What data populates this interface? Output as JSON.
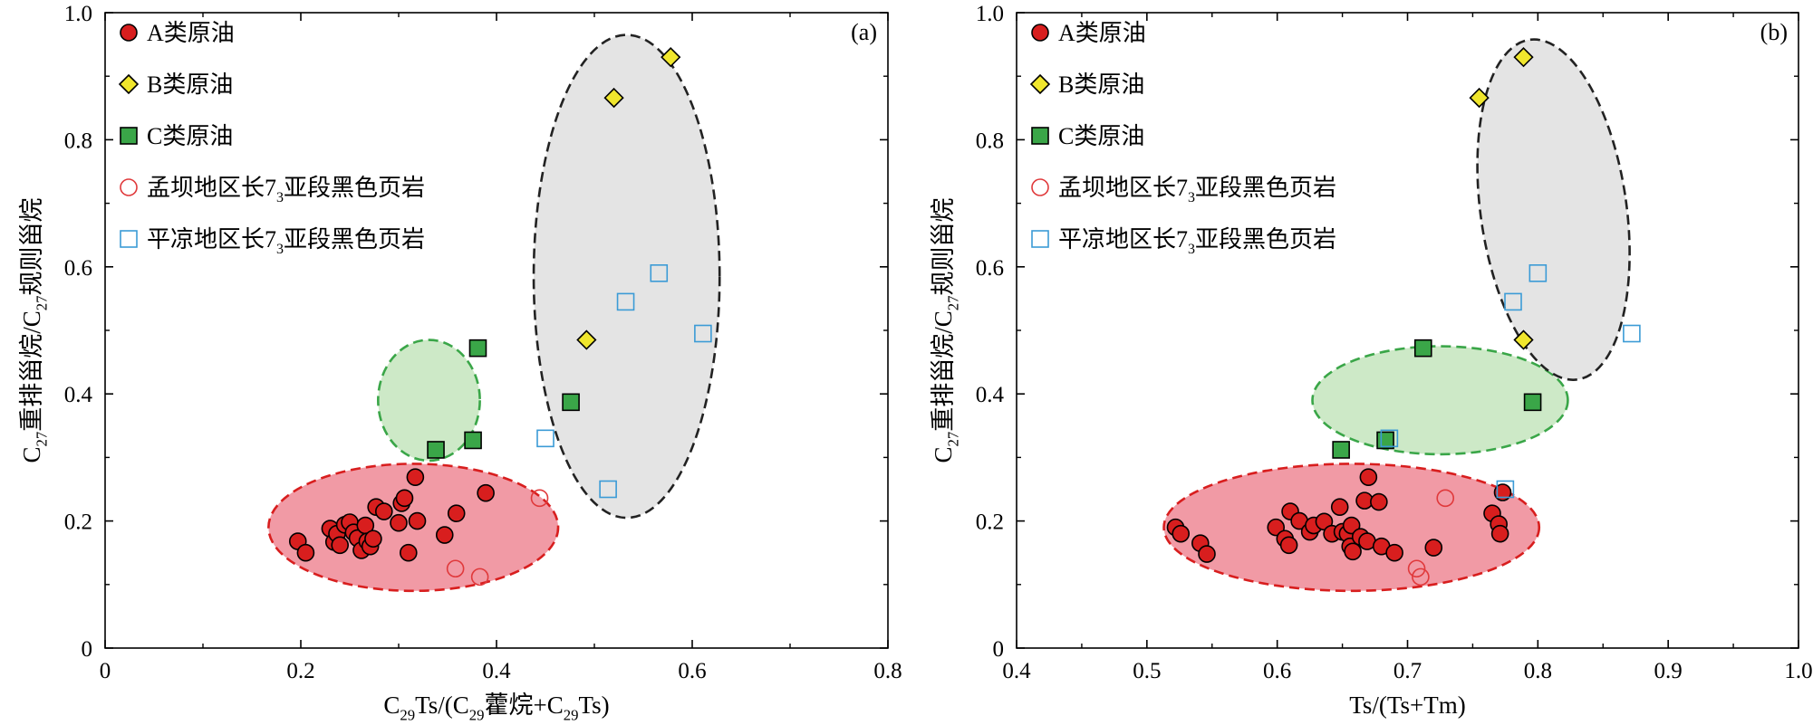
{
  "legend": [
    {
      "key": "A",
      "label": "A类原油",
      "marker": "circle-filled",
      "fill": "#d81e1e",
      "stroke": "#000000"
    },
    {
      "key": "B",
      "label": "B类原油",
      "marker": "diamond",
      "fill": "#f0e62d",
      "stroke": "#000000"
    },
    {
      "key": "C",
      "label": "C类原油",
      "marker": "square-filled",
      "fill": "#3aa648",
      "stroke": "#000000"
    },
    {
      "key": "MB",
      "label_pre": "孟坝地区长7",
      "label_sub": "3",
      "label_post": "亚段黑色页岩",
      "marker": "circle-open",
      "fill": "none",
      "stroke": "#e0393b"
    },
    {
      "key": "PL",
      "label_pre": "平凉地区长7",
      "label_sub": "3",
      "label_post": "亚段黑色页岩",
      "marker": "square-open",
      "fill": "none",
      "stroke": "#3b9bd6"
    }
  ],
  "ylabel": {
    "c1": "C",
    "s1": "27",
    "m1": "重排甾烷/C",
    "s2": "27",
    "m2": "规则甾烷"
  },
  "chart_data": [
    {
      "type": "scatter",
      "panel_label": "(a)",
      "xlabel": {
        "c1": "C",
        "s1": "29",
        "m1": "Ts/(C",
        "s2": "29",
        "m2": "藿烷+C",
        "s3": "29",
        "m3": "Ts)"
      },
      "xlim": [
        0,
        0.8
      ],
      "ylim": [
        0,
        1.0
      ],
      "xticks": [
        "0",
        "0.2",
        "0.4",
        "0.6",
        "0.8"
      ],
      "yticks": [
        "0",
        "0.2",
        "0.4",
        "0.6",
        "0.8",
        "1.0"
      ],
      "ellipses": [
        {
          "name": "A",
          "cx": 0.315,
          "cy": 0.19,
          "rx": 0.148,
          "ry": 0.1,
          "angle": 0,
          "fill": "#f19aa5",
          "stroke": "#d81e1e"
        },
        {
          "name": "C",
          "cx": 0.331,
          "cy": 0.39,
          "rx": 0.052,
          "ry": 0.095,
          "angle": 0,
          "fill": "#cde9c7",
          "stroke": "#3aa648"
        },
        {
          "name": "B",
          "cx": 0.533,
          "cy": 0.585,
          "rx": 0.095,
          "ry": 0.38,
          "angle": 0,
          "fill": "#e4e4e4",
          "stroke": "#222222"
        }
      ],
      "series": [
        {
          "name": "A类原油",
          "marker": "circle-filled",
          "points": [
            [
              0.197,
              0.168
            ],
            [
              0.205,
              0.15
            ],
            [
              0.23,
              0.188
            ],
            [
              0.234,
              0.167
            ],
            [
              0.237,
              0.18
            ],
            [
              0.24,
              0.162
            ],
            [
              0.245,
              0.194
            ],
            [
              0.25,
              0.198
            ],
            [
              0.254,
              0.182
            ],
            [
              0.258,
              0.173
            ],
            [
              0.262,
              0.154
            ],
            [
              0.266,
              0.193
            ],
            [
              0.268,
              0.168
            ],
            [
              0.271,
              0.16
            ],
            [
              0.274,
              0.172
            ],
            [
              0.277,
              0.222
            ],
            [
              0.285,
              0.215
            ],
            [
              0.3,
              0.197
            ],
            [
              0.303,
              0.228
            ],
            [
              0.306,
              0.236
            ],
            [
              0.31,
              0.15
            ],
            [
              0.317,
              0.269
            ],
            [
              0.319,
              0.2
            ],
            [
              0.347,
              0.178
            ],
            [
              0.359,
              0.212
            ],
            [
              0.389,
              0.244
            ]
          ]
        },
        {
          "name": "B类原油",
          "marker": "diamond",
          "points": [
            [
              0.52,
              0.866
            ],
            [
              0.578,
              0.93
            ],
            [
              0.492,
              0.485
            ]
          ]
        },
        {
          "name": "C类原油",
          "marker": "square-filled",
          "points": [
            [
              0.381,
              0.472
            ],
            [
              0.376,
              0.327
            ],
            [
              0.338,
              0.312
            ],
            [
              0.476,
              0.387
            ]
          ]
        },
        {
          "name": "孟坝地区长7₃亚段黑色页岩",
          "marker": "circle-open",
          "points": [
            [
              0.444,
              0.236
            ],
            [
              0.358,
              0.125
            ],
            [
              0.383,
              0.112
            ]
          ]
        },
        {
          "name": "平凉地区长7₃亚段黑色页岩",
          "marker": "square-open",
          "points": [
            [
              0.566,
              0.59
            ],
            [
              0.532,
              0.545
            ],
            [
              0.611,
              0.495
            ],
            [
              0.45,
              0.33
            ],
            [
              0.514,
              0.25
            ]
          ]
        }
      ]
    },
    {
      "type": "scatter",
      "panel_label": "(b)",
      "xlabel": {
        "c1": "Ts/(Ts+Tm)"
      },
      "xlim": [
        0.4,
        1.0
      ],
      "ylim": [
        0,
        1.0
      ],
      "xticks": [
        "0.4",
        "0.5",
        "0.6",
        "0.7",
        "0.8",
        "0.9",
        "1.0"
      ],
      "yticks": [
        "0",
        "0.2",
        "0.4",
        "0.6",
        "0.8",
        "1.0"
      ],
      "ellipses": [
        {
          "name": "A",
          "cx": 0.657,
          "cy": 0.19,
          "rx": 0.144,
          "ry": 0.1,
          "angle": 0,
          "fill": "#f19aa5",
          "stroke": "#d81e1e"
        },
        {
          "name": "C",
          "cx": 0.725,
          "cy": 0.39,
          "rx": 0.098,
          "ry": 0.085,
          "angle": 0,
          "fill": "#cde9c7",
          "stroke": "#3aa648"
        },
        {
          "name": "B",
          "cx": 0.812,
          "cy": 0.69,
          "rx": 0.056,
          "ry": 0.27,
          "angle": -8,
          "fill": "#e4e4e4",
          "stroke": "#222222"
        }
      ],
      "series": [
        {
          "name": "A类原油",
          "marker": "circle-filled",
          "points": [
            [
              0.522,
              0.19
            ],
            [
              0.526,
              0.18
            ],
            [
              0.541,
              0.165
            ],
            [
              0.546,
              0.148
            ],
            [
              0.599,
              0.19
            ],
            [
              0.606,
              0.172
            ],
            [
              0.609,
              0.162
            ],
            [
              0.61,
              0.215
            ],
            [
              0.617,
              0.2
            ],
            [
              0.625,
              0.183
            ],
            [
              0.628,
              0.193
            ],
            [
              0.636,
              0.199
            ],
            [
              0.642,
              0.18
            ],
            [
              0.648,
              0.222
            ],
            [
              0.65,
              0.183
            ],
            [
              0.654,
              0.18
            ],
            [
              0.656,
              0.16
            ],
            [
              0.657,
              0.193
            ],
            [
              0.658,
              0.152
            ],
            [
              0.664,
              0.175
            ],
            [
              0.667,
              0.232
            ],
            [
              0.669,
              0.168
            ],
            [
              0.67,
              0.269
            ],
            [
              0.678,
              0.23
            ],
            [
              0.68,
              0.16
            ],
            [
              0.69,
              0.15
            ],
            [
              0.72,
              0.158
            ],
            [
              0.765,
              0.212
            ],
            [
              0.77,
              0.195
            ],
            [
              0.771,
              0.18
            ],
            [
              0.773,
              0.245
            ]
          ]
        },
        {
          "name": "B类原油",
          "marker": "diamond",
          "points": [
            [
              0.789,
              0.93
            ],
            [
              0.755,
              0.866
            ],
            [
              0.789,
              0.485
            ]
          ]
        },
        {
          "name": "C类原油",
          "marker": "square-filled",
          "points": [
            [
              0.712,
              0.472
            ],
            [
              0.796,
              0.387
            ],
            [
              0.683,
              0.327
            ],
            [
              0.649,
              0.312
            ]
          ]
        },
        {
          "name": "孟坝地区长7₃亚段黑色页岩",
          "marker": "circle-open",
          "points": [
            [
              0.729,
              0.236
            ],
            [
              0.707,
              0.125
            ],
            [
              0.71,
              0.112
            ]
          ]
        },
        {
          "name": "平凉地区长7₃亚段黑色页岩",
          "marker": "square-open",
          "points": [
            [
              0.8,
              0.59
            ],
            [
              0.781,
              0.545
            ],
            [
              0.872,
              0.495
            ],
            [
              0.686,
              0.33
            ],
            [
              0.775,
              0.25
            ]
          ]
        }
      ]
    }
  ]
}
